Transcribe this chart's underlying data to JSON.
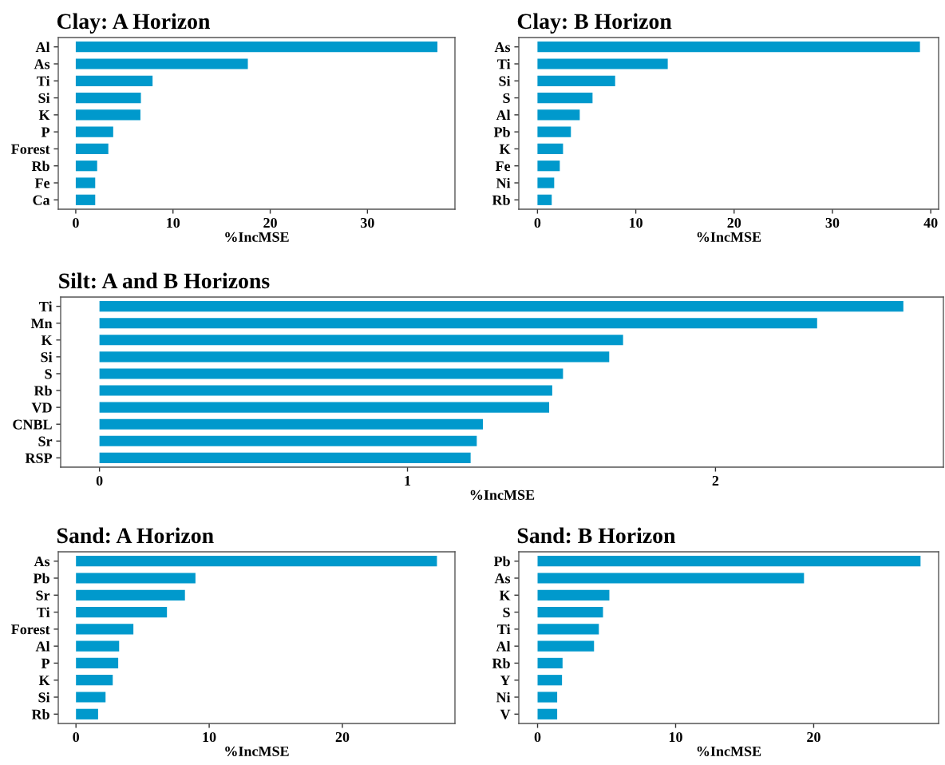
{
  "chart_data": [
    {
      "type": "bar",
      "orientation": "horizontal",
      "title": "Clay: A Horizon",
      "xlabel": "%IncMSE",
      "categories": [
        "Al",
        "As",
        "Ti",
        "Si",
        "K",
        "P",
        "Forest",
        "Rb",
        "Fe",
        "Ca"
      ],
      "values": [
        37.2,
        17.7,
        7.9,
        6.7,
        6.65,
        3.85,
        3.35,
        2.2,
        2.0,
        2.0
      ],
      "color": "#0099cc",
      "xlim": [
        -1.8,
        39.0
      ],
      "xticks": [
        0,
        10,
        20,
        30
      ],
      "grid": false
    },
    {
      "type": "bar",
      "orientation": "horizontal",
      "title": "Clay: B Horizon",
      "xlabel": "%IncMSE",
      "categories": [
        "As",
        "Ti",
        "Si",
        "S",
        "Al",
        "Pb",
        "K",
        "Fe",
        "Ni",
        "Rb"
      ],
      "values": [
        38.9,
        13.25,
        7.9,
        5.6,
        4.3,
        3.4,
        2.6,
        2.27,
        1.7,
        1.45
      ],
      "color": "#0099cc",
      "xlim": [
        -1.9,
        40.8
      ],
      "xticks": [
        0,
        10,
        20,
        30,
        40
      ],
      "grid": false
    },
    {
      "type": "bar",
      "orientation": "horizontal",
      "title": "Silt: A and B Horizons",
      "xlabel": "%IncMSE",
      "categories": [
        "Ti",
        "Mn",
        "K",
        "Si",
        "S",
        "Rb",
        "VD",
        "CNBL",
        "Sr",
        "RSP"
      ],
      "values": [
        2.61,
        2.33,
        1.7,
        1.655,
        1.505,
        1.47,
        1.46,
        1.245,
        1.225,
        1.205
      ],
      "color": "#0099cc",
      "xlim": [
        -0.126,
        2.74
      ],
      "xticks": [
        0,
        1,
        2
      ],
      "grid": false
    },
    {
      "type": "bar",
      "orientation": "horizontal",
      "title": "Sand: A Horizon",
      "xlabel": "%IncMSE",
      "categories": [
        "As",
        "Pb",
        "Sr",
        "Ti",
        "Forest",
        "Al",
        "P",
        "K",
        "Si",
        "Rb"
      ],
      "values": [
        27.1,
        8.97,
        8.18,
        6.83,
        4.31,
        3.24,
        3.17,
        2.76,
        2.22,
        1.66
      ],
      "color": "#0099cc",
      "xlim": [
        -1.33,
        28.45
      ],
      "xticks": [
        0,
        10,
        20
      ],
      "grid": false
    },
    {
      "type": "bar",
      "orientation": "horizontal",
      "title": "Sand: B Horizon",
      "xlabel": "%IncMSE",
      "categories": [
        "Pb",
        "As",
        "K",
        "S",
        "Ti",
        "Al",
        "Rb",
        "Y",
        "Ni",
        "V"
      ],
      "values": [
        27.74,
        19.3,
        5.2,
        4.74,
        4.44,
        4.09,
        1.81,
        1.77,
        1.42,
        1.42
      ],
      "color": "#0099cc",
      "xlim": [
        -1.36,
        29.05
      ],
      "xticks": [
        0,
        10,
        20
      ],
      "grid": false
    }
  ]
}
